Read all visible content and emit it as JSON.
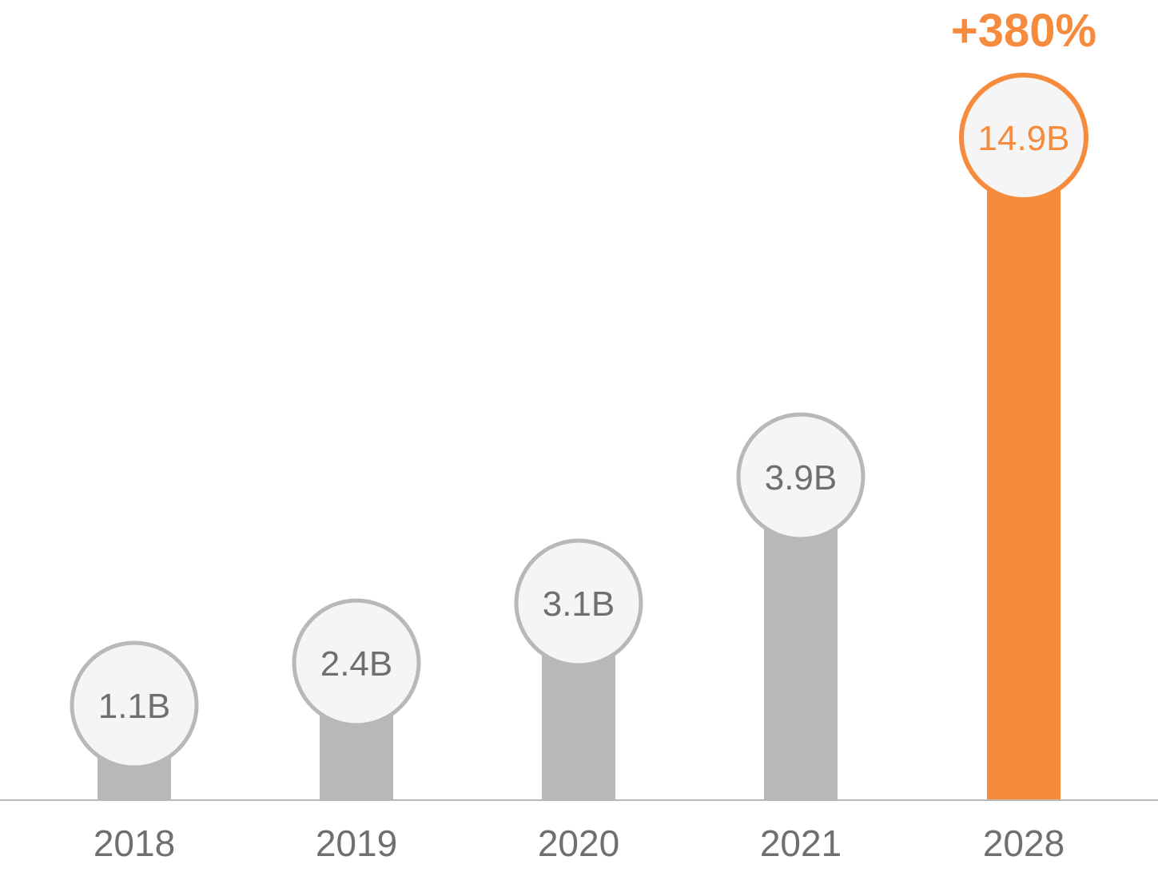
{
  "chart_data": {
    "type": "bar",
    "categories": [
      "2018",
      "2019",
      "2020",
      "2021",
      "2028"
    ],
    "values": [
      1.1,
      2.4,
      3.1,
      3.9,
      14.9
    ],
    "value_labels": [
      "1.1B",
      "2.4B",
      "3.1B",
      "3.9B",
      "14.9B"
    ],
    "annotation": "+380%",
    "highlight_category": "2028",
    "title": "",
    "xlabel": "",
    "ylabel": "",
    "grid": false,
    "legend": "none",
    "colors": {
      "bar": "#b8b8b8",
      "highlight": "#f78b3d",
      "bubble_fill": "#f5f5f5",
      "bubble_stroke": "#b8b8b8",
      "label_text": "#6f6f6f",
      "axis_line": "#b8b8b8"
    }
  }
}
